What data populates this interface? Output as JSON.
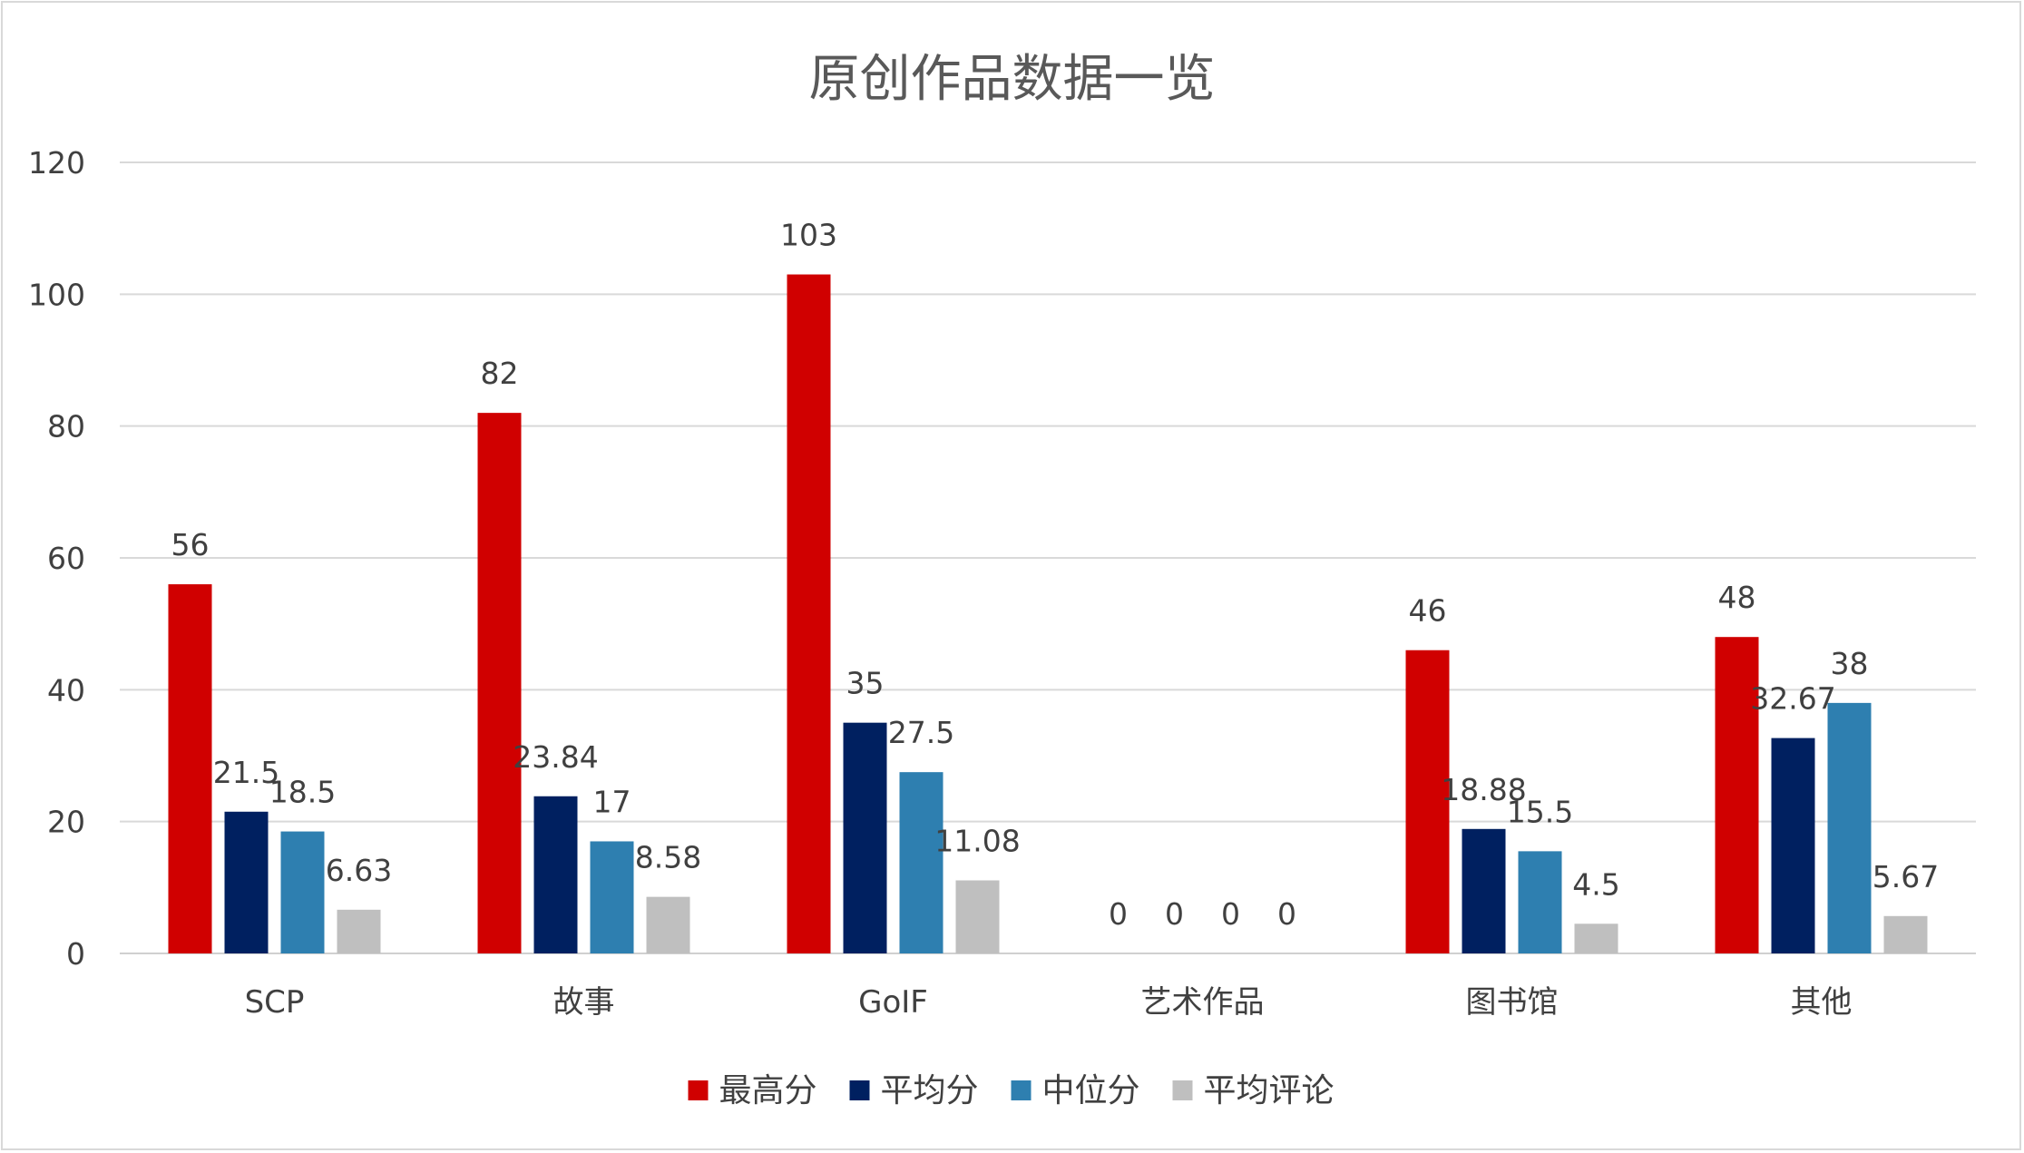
{
  "chart_data": {
    "type": "bar",
    "title": "原创作品数据一览",
    "xlabel": "",
    "ylabel": "",
    "ylim": [
      0,
      120
    ],
    "yticks": [
      0,
      20,
      40,
      60,
      80,
      100,
      120
    ],
    "grid": true,
    "legend_position": "bottom",
    "categories": [
      "SCP",
      "故事",
      "GoIF",
      "艺术作品",
      "图书馆",
      "其他"
    ],
    "series": [
      {
        "name": "最高分",
        "color": "#d00000",
        "values": [
          56,
          82,
          103,
          0,
          46,
          48
        ]
      },
      {
        "name": "平均分",
        "color": "#002060",
        "values": [
          21.5,
          23.84,
          35,
          0,
          18.88,
          32.67
        ]
      },
      {
        "name": "中位分",
        "color": "#2e7fb0",
        "values": [
          18.5,
          17,
          27.5,
          0,
          15.5,
          38
        ]
      },
      {
        "name": "平均评论",
        "color": "#bfbfbf",
        "values": [
          6.63,
          8.58,
          11.08,
          0,
          4.5,
          5.67
        ]
      }
    ]
  }
}
